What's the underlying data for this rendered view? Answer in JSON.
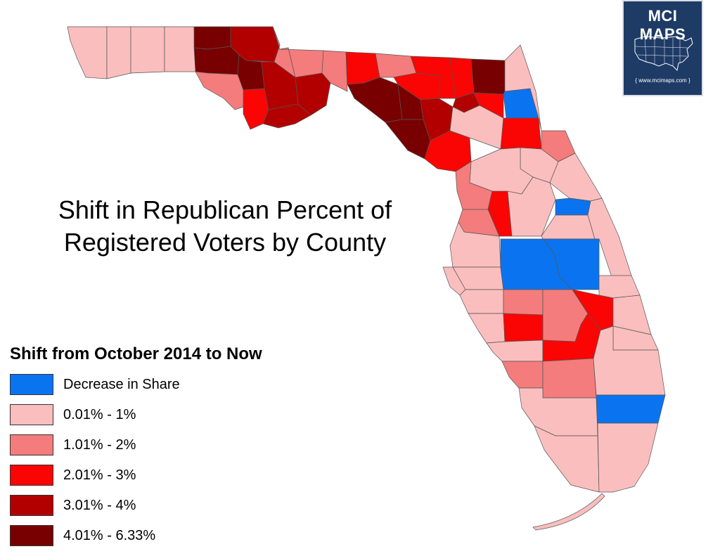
{
  "title_lines": [
    "Shift in Republican Percent of",
    "Registered Voters by County"
  ],
  "legend": {
    "title": "Shift from October 2014 to Now",
    "items": [
      {
        "key": "decrease",
        "label": "Decrease in Share",
        "color": "#0a74f0"
      },
      {
        "key": "c1",
        "label": "0.01% - 1%",
        "color": "#fbbebe"
      },
      {
        "key": "c2",
        "label": "1.01% - 2%",
        "color": "#f47c7c"
      },
      {
        "key": "c3",
        "label": "2.01% - 3%",
        "color": "#fb0404"
      },
      {
        "key": "c4",
        "label": "3.01% - 4%",
        "color": "#b20000"
      },
      {
        "key": "c5",
        "label": "4.01% - 6.33%",
        "color": "#780000"
      }
    ]
  },
  "logo": {
    "name": "MCI MAPS",
    "url": "{ www.mcimaps.com }",
    "icon": "us-map-icon"
  },
  "counties": [
    {
      "name": "Escambia",
      "class": "c1"
    },
    {
      "name": "Santa Rosa",
      "class": "c1"
    },
    {
      "name": "Okaloosa",
      "class": "c1"
    },
    {
      "name": "Walton",
      "class": "c1"
    },
    {
      "name": "Holmes",
      "class": "c5"
    },
    {
      "name": "Washington",
      "class": "c5"
    },
    {
      "name": "Jackson",
      "class": "c4"
    },
    {
      "name": "Bay",
      "class": "c2"
    },
    {
      "name": "Calhoun",
      "class": "c5"
    },
    {
      "name": "Gulf",
      "class": "c3"
    },
    {
      "name": "Liberty",
      "class": "c4"
    },
    {
      "name": "Franklin",
      "class": "c4"
    },
    {
      "name": "Gadsden",
      "class": "c2"
    },
    {
      "name": "Leon",
      "class": "c2"
    },
    {
      "name": "Wakulla",
      "class": "c4"
    },
    {
      "name": "Jefferson",
      "class": "c2"
    },
    {
      "name": "Madison",
      "class": "c3"
    },
    {
      "name": "Taylor",
      "class": "c5"
    },
    {
      "name": "Hamilton",
      "class": "c2"
    },
    {
      "name": "Suwannee",
      "class": "c3"
    },
    {
      "name": "Lafayette",
      "class": "c5"
    },
    {
      "name": "Dixie",
      "class": "c5"
    },
    {
      "name": "Columbia",
      "class": "c3"
    },
    {
      "name": "Gilchrist",
      "class": "c4"
    },
    {
      "name": "Levy",
      "class": "c3"
    },
    {
      "name": "Baker",
      "class": "c3"
    },
    {
      "name": "Union",
      "class": "c4"
    },
    {
      "name": "Bradford",
      "class": "c3"
    },
    {
      "name": "Alachua",
      "class": "c1"
    },
    {
      "name": "Nassau",
      "class": "c5"
    },
    {
      "name": "Duval",
      "class": "decrease"
    },
    {
      "name": "Clay",
      "class": "c3"
    },
    {
      "name": "St. Johns",
      "class": "c1"
    },
    {
      "name": "Putnam",
      "class": "c1"
    },
    {
      "name": "Flagler",
      "class": "c2"
    },
    {
      "name": "Marion",
      "class": "c1"
    },
    {
      "name": "Volusia",
      "class": "c1"
    },
    {
      "name": "Citrus",
      "class": "c2"
    },
    {
      "name": "Sumter",
      "class": "c3"
    },
    {
      "name": "Lake",
      "class": "c1"
    },
    {
      "name": "Seminole",
      "class": "decrease"
    },
    {
      "name": "Hernando",
      "class": "c2"
    },
    {
      "name": "Pasco",
      "class": "c1"
    },
    {
      "name": "Orange",
      "class": "c1"
    },
    {
      "name": "Brevard",
      "class": "c1"
    },
    {
      "name": "Pinellas",
      "class": "c1"
    },
    {
      "name": "Hillsborough",
      "class": "c1"
    },
    {
      "name": "Polk",
      "class": "decrease"
    },
    {
      "name": "Osceola",
      "class": "decrease"
    },
    {
      "name": "Indian River",
      "class": "c1"
    },
    {
      "name": "Manatee",
      "class": "c1"
    },
    {
      "name": "Hardee",
      "class": "c2"
    },
    {
      "name": "Highlands",
      "class": "c2"
    },
    {
      "name": "Okeechobee",
      "class": "c3"
    },
    {
      "name": "St. Lucie",
      "class": "c1"
    },
    {
      "name": "Sarasota",
      "class": "c1"
    },
    {
      "name": "DeSoto",
      "class": "c3"
    },
    {
      "name": "Martin",
      "class": "c1"
    },
    {
      "name": "Charlotte",
      "class": "c1"
    },
    {
      "name": "Glades",
      "class": "c3"
    },
    {
      "name": "Lee",
      "class": "c2"
    },
    {
      "name": "Hendry",
      "class": "c2"
    },
    {
      "name": "Palm Beach",
      "class": "c1"
    },
    {
      "name": "Collier",
      "class": "c1"
    },
    {
      "name": "Broward",
      "class": "decrease"
    },
    {
      "name": "Monroe",
      "class": "c1"
    },
    {
      "name": "Miami-Dade",
      "class": "c1"
    }
  ]
}
